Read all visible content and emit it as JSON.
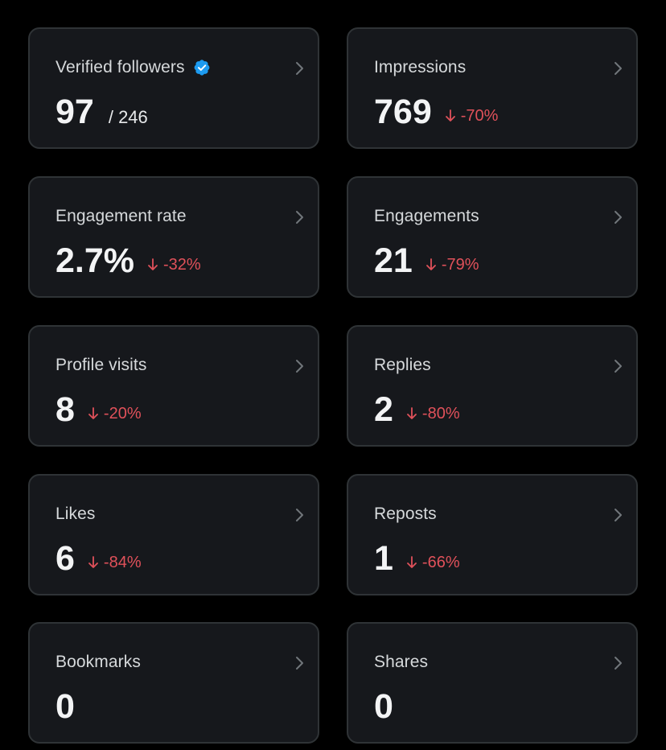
{
  "colors": {
    "background": "#000000",
    "card": "#16181c",
    "border": "#2f3336",
    "negative": "#e0515a",
    "verified": "#1d9bf0"
  },
  "cards": [
    {
      "label": "Verified followers",
      "value": "97",
      "total": "/ 246",
      "verified_icon": "verified-badge-icon"
    },
    {
      "label": "Impressions",
      "value": "769",
      "change": "-70%",
      "change_icon": "arrow-down-icon"
    },
    {
      "label": "Engagement rate",
      "value": "2.7%",
      "change": "-32%",
      "change_icon": "arrow-down-icon"
    },
    {
      "label": "Engagements",
      "value": "21",
      "change": "-79%",
      "change_icon": "arrow-down-icon"
    },
    {
      "label": "Profile visits",
      "value": "8",
      "change": "-20%",
      "change_icon": "arrow-down-icon"
    },
    {
      "label": "Replies",
      "value": "2",
      "change": "-80%",
      "change_icon": "arrow-down-icon"
    },
    {
      "label": "Likes",
      "value": "6",
      "change": "-84%",
      "change_icon": "arrow-down-icon"
    },
    {
      "label": "Reposts",
      "value": "1",
      "change": "-66%",
      "change_icon": "arrow-down-icon"
    },
    {
      "label": "Bookmarks",
      "value": "0"
    },
    {
      "label": "Shares",
      "value": "0"
    }
  ]
}
